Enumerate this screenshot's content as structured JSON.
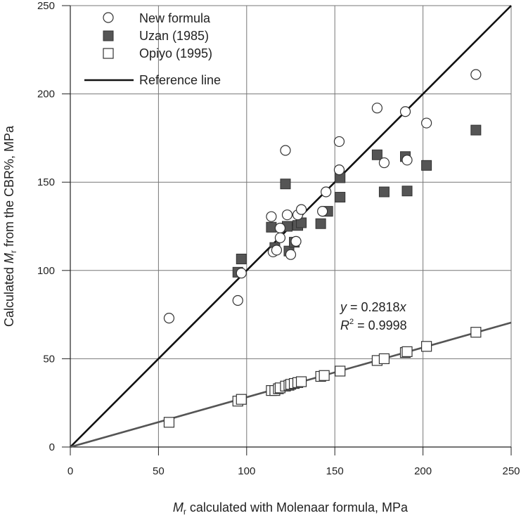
{
  "chart_data": {
    "type": "scatter",
    "xlabel": {
      "symbol": "M",
      "subscript": "r",
      "text": " calculated with Molenaar formula, MPa"
    },
    "ylabel": {
      "prefix": "Calculated ",
      "symbol": "M",
      "subscript": "r",
      "text": " from the CBR%, MPa"
    },
    "xlim": [
      0,
      250
    ],
    "ylim": [
      0,
      250
    ],
    "x_ticks": [
      0,
      50,
      100,
      150,
      200,
      250
    ],
    "y_ticks": [
      0,
      50,
      100,
      150,
      200,
      250
    ],
    "grid": true,
    "legend_placement": "top-left",
    "colors": {
      "dark_marker": "#555555",
      "reference_line": "#111111",
      "fit_line": "#555555",
      "grid": "#777777"
    },
    "series": [
      {
        "name": "New formula",
        "marker": "circle-open",
        "points": [
          [
            56,
            73
          ],
          [
            95,
            83
          ],
          [
            97,
            98.5
          ],
          [
            114,
            130.5
          ],
          [
            115,
            110.5
          ],
          [
            117,
            111.5
          ],
          [
            119,
            124
          ],
          [
            119,
            118.5
          ],
          [
            122,
            168
          ],
          [
            123,
            131.5
          ],
          [
            125,
            109
          ],
          [
            128,
            116.5
          ],
          [
            129,
            131.5
          ],
          [
            131,
            134.5
          ],
          [
            143,
            133.5
          ],
          [
            145,
            144.5
          ],
          [
            152.5,
            173
          ],
          [
            152.5,
            157
          ],
          [
            174,
            192
          ],
          [
            178,
            161
          ],
          [
            190,
            190
          ],
          [
            191,
            162.5
          ],
          [
            202,
            183.5
          ],
          [
            230,
            211
          ]
        ]
      },
      {
        "name": "Uzan (1985)",
        "marker": "square-filled",
        "points": [
          [
            95,
            99
          ],
          [
            97,
            106.5
          ],
          [
            114,
            124.5
          ],
          [
            116,
            113
          ],
          [
            122,
            149
          ],
          [
            123,
            125
          ],
          [
            124,
            111
          ],
          [
            127,
            116
          ],
          [
            129,
            125.5
          ],
          [
            131,
            127
          ],
          [
            142,
            126.5
          ],
          [
            146,
            133.5
          ],
          [
            153,
            152.5
          ],
          [
            153,
            141.5
          ],
          [
            174,
            165.5
          ],
          [
            178,
            144.5
          ],
          [
            190,
            164.5
          ],
          [
            191,
            145
          ],
          [
            202,
            159.5
          ],
          [
            230,
            179.5
          ]
        ]
      },
      {
        "name": "Opiyo (1995)",
        "marker": "square-open",
        "points": [
          [
            56,
            14
          ],
          [
            95,
            26
          ],
          [
            97,
            27
          ],
          [
            114,
            32
          ],
          [
            116,
            32
          ],
          [
            118,
            33
          ],
          [
            119,
            33.5
          ],
          [
            122,
            34.5
          ],
          [
            124,
            35
          ],
          [
            125,
            35.5
          ],
          [
            127,
            36
          ],
          [
            129,
            36.5
          ],
          [
            131,
            37
          ],
          [
            142,
            40
          ],
          [
            144,
            40.5
          ],
          [
            153,
            43
          ],
          [
            174,
            49
          ],
          [
            178,
            50
          ],
          [
            190,
            53.5
          ],
          [
            191,
            54
          ],
          [
            202,
            57
          ],
          [
            230,
            65
          ]
        ]
      }
    ],
    "lines": [
      {
        "name": "Reference line",
        "slope": 1,
        "range": [
          0,
          250
        ]
      },
      {
        "slope": 0.2818,
        "range": [
          0,
          250
        ]
      }
    ],
    "annotation": {
      "equation": {
        "lhs": "y",
        "middle": " = 0.2818",
        "var": "x"
      },
      "r2": {
        "R": "R",
        "sup": "2",
        "rest": " = 0.9998"
      }
    },
    "legend": [
      {
        "label": "New formula",
        "marker": "circle-open"
      },
      {
        "label": "Uzan (1985)",
        "marker": "square-filled"
      },
      {
        "label": "Opiyo (1995)",
        "marker": "square-open"
      },
      {
        "label": "Reference line",
        "marker": "line"
      }
    ]
  }
}
